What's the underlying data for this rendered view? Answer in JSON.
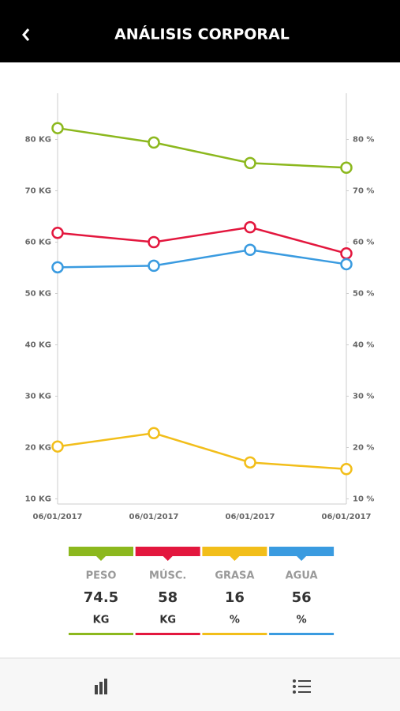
{
  "header": {
    "title": "ANÁLISIS CORPORAL"
  },
  "chart_data": {
    "type": "line",
    "categories": [
      "06/01/2017",
      "06/01/2017",
      "06/01/2017",
      "06/01/2017"
    ],
    "series": [
      {
        "name": "PESO",
        "color": "#8cb81e",
        "values": [
          82.2,
          79.4,
          75.4,
          74.5
        ]
      },
      {
        "name": "MÚSC.",
        "color": "#e3173e",
        "values": [
          61.8,
          60,
          62.9,
          57.8
        ]
      },
      {
        "name": "GRASA",
        "color": "#f2be1a",
        "axis": "y2",
        "values": [
          20.2,
          22.8,
          17.1,
          15.8
        ]
      },
      {
        "name": "AGUA",
        "color": "#3a9be0",
        "axis": "y2",
        "values": [
          55.1,
          55.4,
          58.5,
          55.7
        ]
      }
    ],
    "ylim": [
      9,
      89
    ],
    "yticks": [
      {
        "value": 10,
        "label": "10 KG"
      },
      {
        "value": 20,
        "label": "20 KG"
      },
      {
        "value": 30,
        "label": "30 KG"
      },
      {
        "value": 40,
        "label": "40 KG"
      },
      {
        "value": 50,
        "label": "50 KG"
      },
      {
        "value": 60,
        "label": "60 KG"
      },
      {
        "value": 70,
        "label": "70 KG"
      },
      {
        "value": 80,
        "label": "80 KG"
      }
    ],
    "y2lim": [
      9,
      89
    ],
    "y2ticks": [
      {
        "value": 10,
        "label": "10 %"
      },
      {
        "value": 20,
        "label": "20 %"
      },
      {
        "value": 30,
        "label": "30 %"
      },
      {
        "value": 40,
        "label": "40 %"
      },
      {
        "value": 50,
        "label": "50 %"
      },
      {
        "value": 60,
        "label": "60 %"
      },
      {
        "value": 70,
        "label": "70 %"
      },
      {
        "value": 80,
        "label": "80 %"
      }
    ]
  },
  "summary": [
    {
      "value": 74.5,
      "unit": "KG"
    },
    {
      "value": 58,
      "unit": "KG"
    },
    {
      "value": 16,
      "unit": "%"
    },
    {
      "value": 56,
      "unit": "%"
    }
  ]
}
